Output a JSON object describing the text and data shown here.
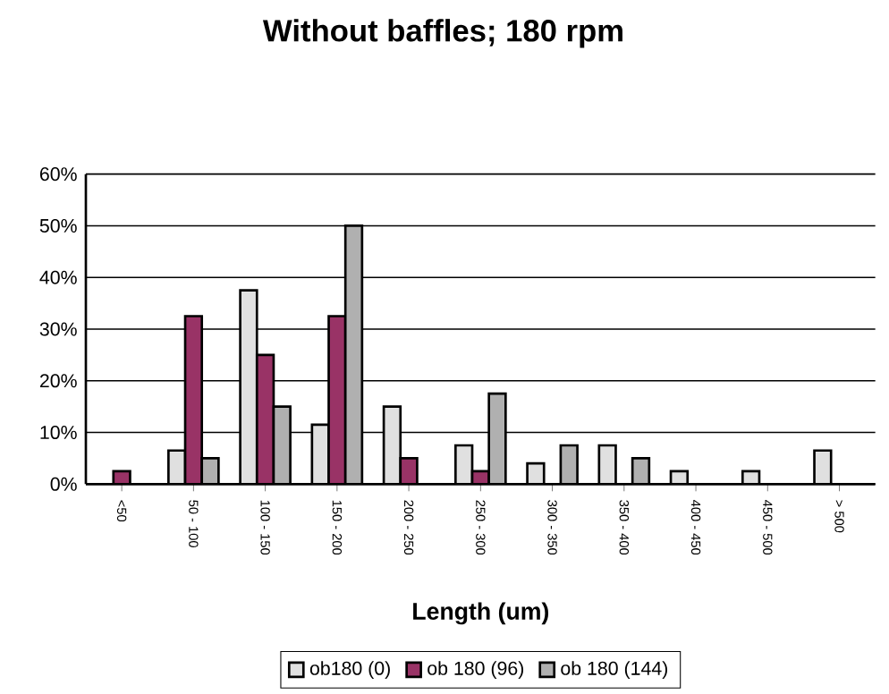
{
  "chart_data": {
    "type": "bar",
    "title": "Without baffles; 180 rpm",
    "xlabel": "Length (um)",
    "categories": [
      "<50",
      "50 - 100",
      "100 - 150",
      "150 - 200",
      "200 - 250",
      "250 - 300",
      "300 - 350",
      "350 - 400",
      "400 - 450",
      "450 - 500",
      "> 500"
    ],
    "series": [
      {
        "name": "ob180 (0)",
        "color": "#e0e0e0",
        "values": [
          0,
          6.5,
          37.5,
          11.5,
          15,
          7.5,
          4,
          7.5,
          2.5,
          2.5,
          6.5
        ]
      },
      {
        "name": "ob 180 (96)",
        "color": "#993366",
        "values": [
          2.5,
          32.5,
          25,
          32.5,
          5,
          2.5,
          0,
          0,
          0,
          0,
          0
        ]
      },
      {
        "name": "ob 180 (144)",
        "color": "#b0b0b0",
        "values": [
          0,
          5,
          15,
          50,
          0,
          17.5,
          7.5,
          5,
          0,
          0,
          0
        ]
      }
    ],
    "ylim": [
      0,
      60
    ],
    "yticks": [
      {
        "value": 0,
        "label": "0%"
      },
      {
        "value": 10,
        "label": "10%"
      },
      {
        "value": 20,
        "label": "20%"
      },
      {
        "value": 30,
        "label": "30%"
      },
      {
        "value": 40,
        "label": "40%"
      },
      {
        "value": 50,
        "label": "50%"
      },
      {
        "value": 60,
        "label": "60%"
      }
    ],
    "grid": "y",
    "legend": "bottom"
  }
}
